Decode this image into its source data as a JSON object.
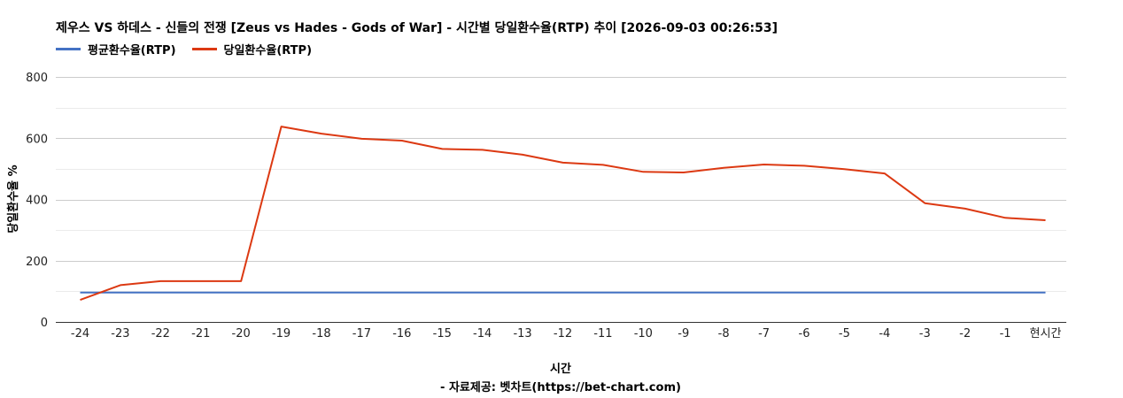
{
  "chart_data": {
    "type": "line",
    "title": "제우스 VS 하데스 - 신들의 전쟁 [Zeus vs Hades - Gods of War] - 시간별 당일환수율(RTP) 추이 [2026-09-03 00:26:53]",
    "xlabel": "시간",
    "ylabel": "당일환수율 %",
    "source": "- 자료제공: 벳차트(https://bet-chart.com)",
    "categories": [
      "-24",
      "-23",
      "-22",
      "-21",
      "-20",
      "-19",
      "-18",
      "-17",
      "-16",
      "-15",
      "-14",
      "-13",
      "-12",
      "-11",
      "-10",
      "-9",
      "-8",
      "-7",
      "-6",
      "-5",
      "-4",
      "-3",
      "-2",
      "-1",
      "현시간"
    ],
    "series": [
      {
        "name": "평균환수율(RTP)",
        "color": "#4472c4",
        "values": [
          96,
          96,
          96,
          96,
          96,
          96,
          96,
          96,
          96,
          96,
          96,
          96,
          96,
          96,
          96,
          96,
          96,
          96,
          96,
          96,
          96,
          96,
          96,
          96,
          96
        ]
      },
      {
        "name": "당일환수율(RTP)",
        "color": "#dc3912",
        "values": [
          72,
          120,
          133,
          133,
          133,
          638,
          615,
          598,
          592,
          565,
          562,
          546,
          520,
          513,
          490,
          488,
          503,
          514,
          510,
          499,
          485,
          388,
          370,
          340,
          332
        ]
      }
    ],
    "ylim": [
      0,
      800
    ],
    "yticks": [
      0,
      200,
      400,
      600,
      800
    ],
    "grid": true,
    "legend": "top-left"
  }
}
